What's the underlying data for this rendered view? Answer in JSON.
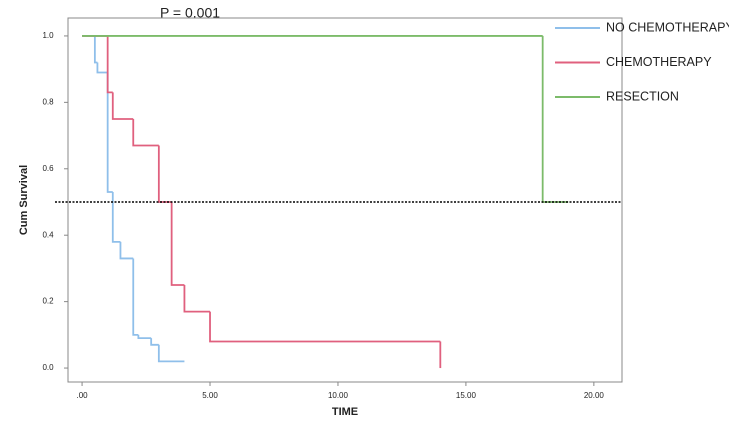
{
  "chart_data": {
    "type": "step",
    "title": "P = 0.001",
    "x_label": "TIME",
    "y_label": "Cum Survival",
    "xlim": [
      -0.55,
      21.1
    ],
    "ylim": [
      -0.042,
      1.054
    ],
    "xticks": [
      {
        "value": 0,
        "label": ".00"
      },
      {
        "value": 5,
        "label": "5.00"
      },
      {
        "value": 10,
        "label": "10.00"
      },
      {
        "value": 15,
        "label": "15.00"
      },
      {
        "value": 20,
        "label": "20.00"
      }
    ],
    "yticks": [
      {
        "value": 0,
        "label": "0.0"
      },
      {
        "value": 0.2,
        "label": "0.2"
      },
      {
        "value": 0.4,
        "label": "0.4"
      },
      {
        "value": 0.6,
        "label": "0.6"
      },
      {
        "value": 0.8,
        "label": "0.8"
      },
      {
        "value": 1,
        "label": "1.0"
      }
    ],
    "reference_line": 0.5,
    "series": [
      {
        "name": "NO CHEMOTHERAPY",
        "color": "#8fbfea",
        "x": [
          0,
          0.5,
          0.6,
          1.0,
          1.2,
          1.5,
          2.0,
          2.2,
          2.7,
          3.0,
          4.0
        ],
        "values": [
          1.0,
          0.92,
          0.89,
          0.53,
          0.38,
          0.33,
          0.1,
          0.09,
          0.07,
          0.02,
          0.02
        ]
      },
      {
        "name": "CHEMOTHERAPY",
        "color": "#e0607e",
        "x": [
          0,
          1.0,
          1.2,
          2.0,
          3.0,
          3.5,
          4.0,
          5.0,
          14.0
        ],
        "values": [
          1.0,
          0.83,
          0.75,
          0.67,
          0.5,
          0.25,
          0.17,
          0.08,
          0.0
        ]
      },
      {
        "name": "RESECTION",
        "color": "#7cbb6a",
        "x": [
          0,
          18.0,
          19.0
        ],
        "values": [
          1.0,
          0.5,
          0.5
        ]
      }
    ]
  }
}
